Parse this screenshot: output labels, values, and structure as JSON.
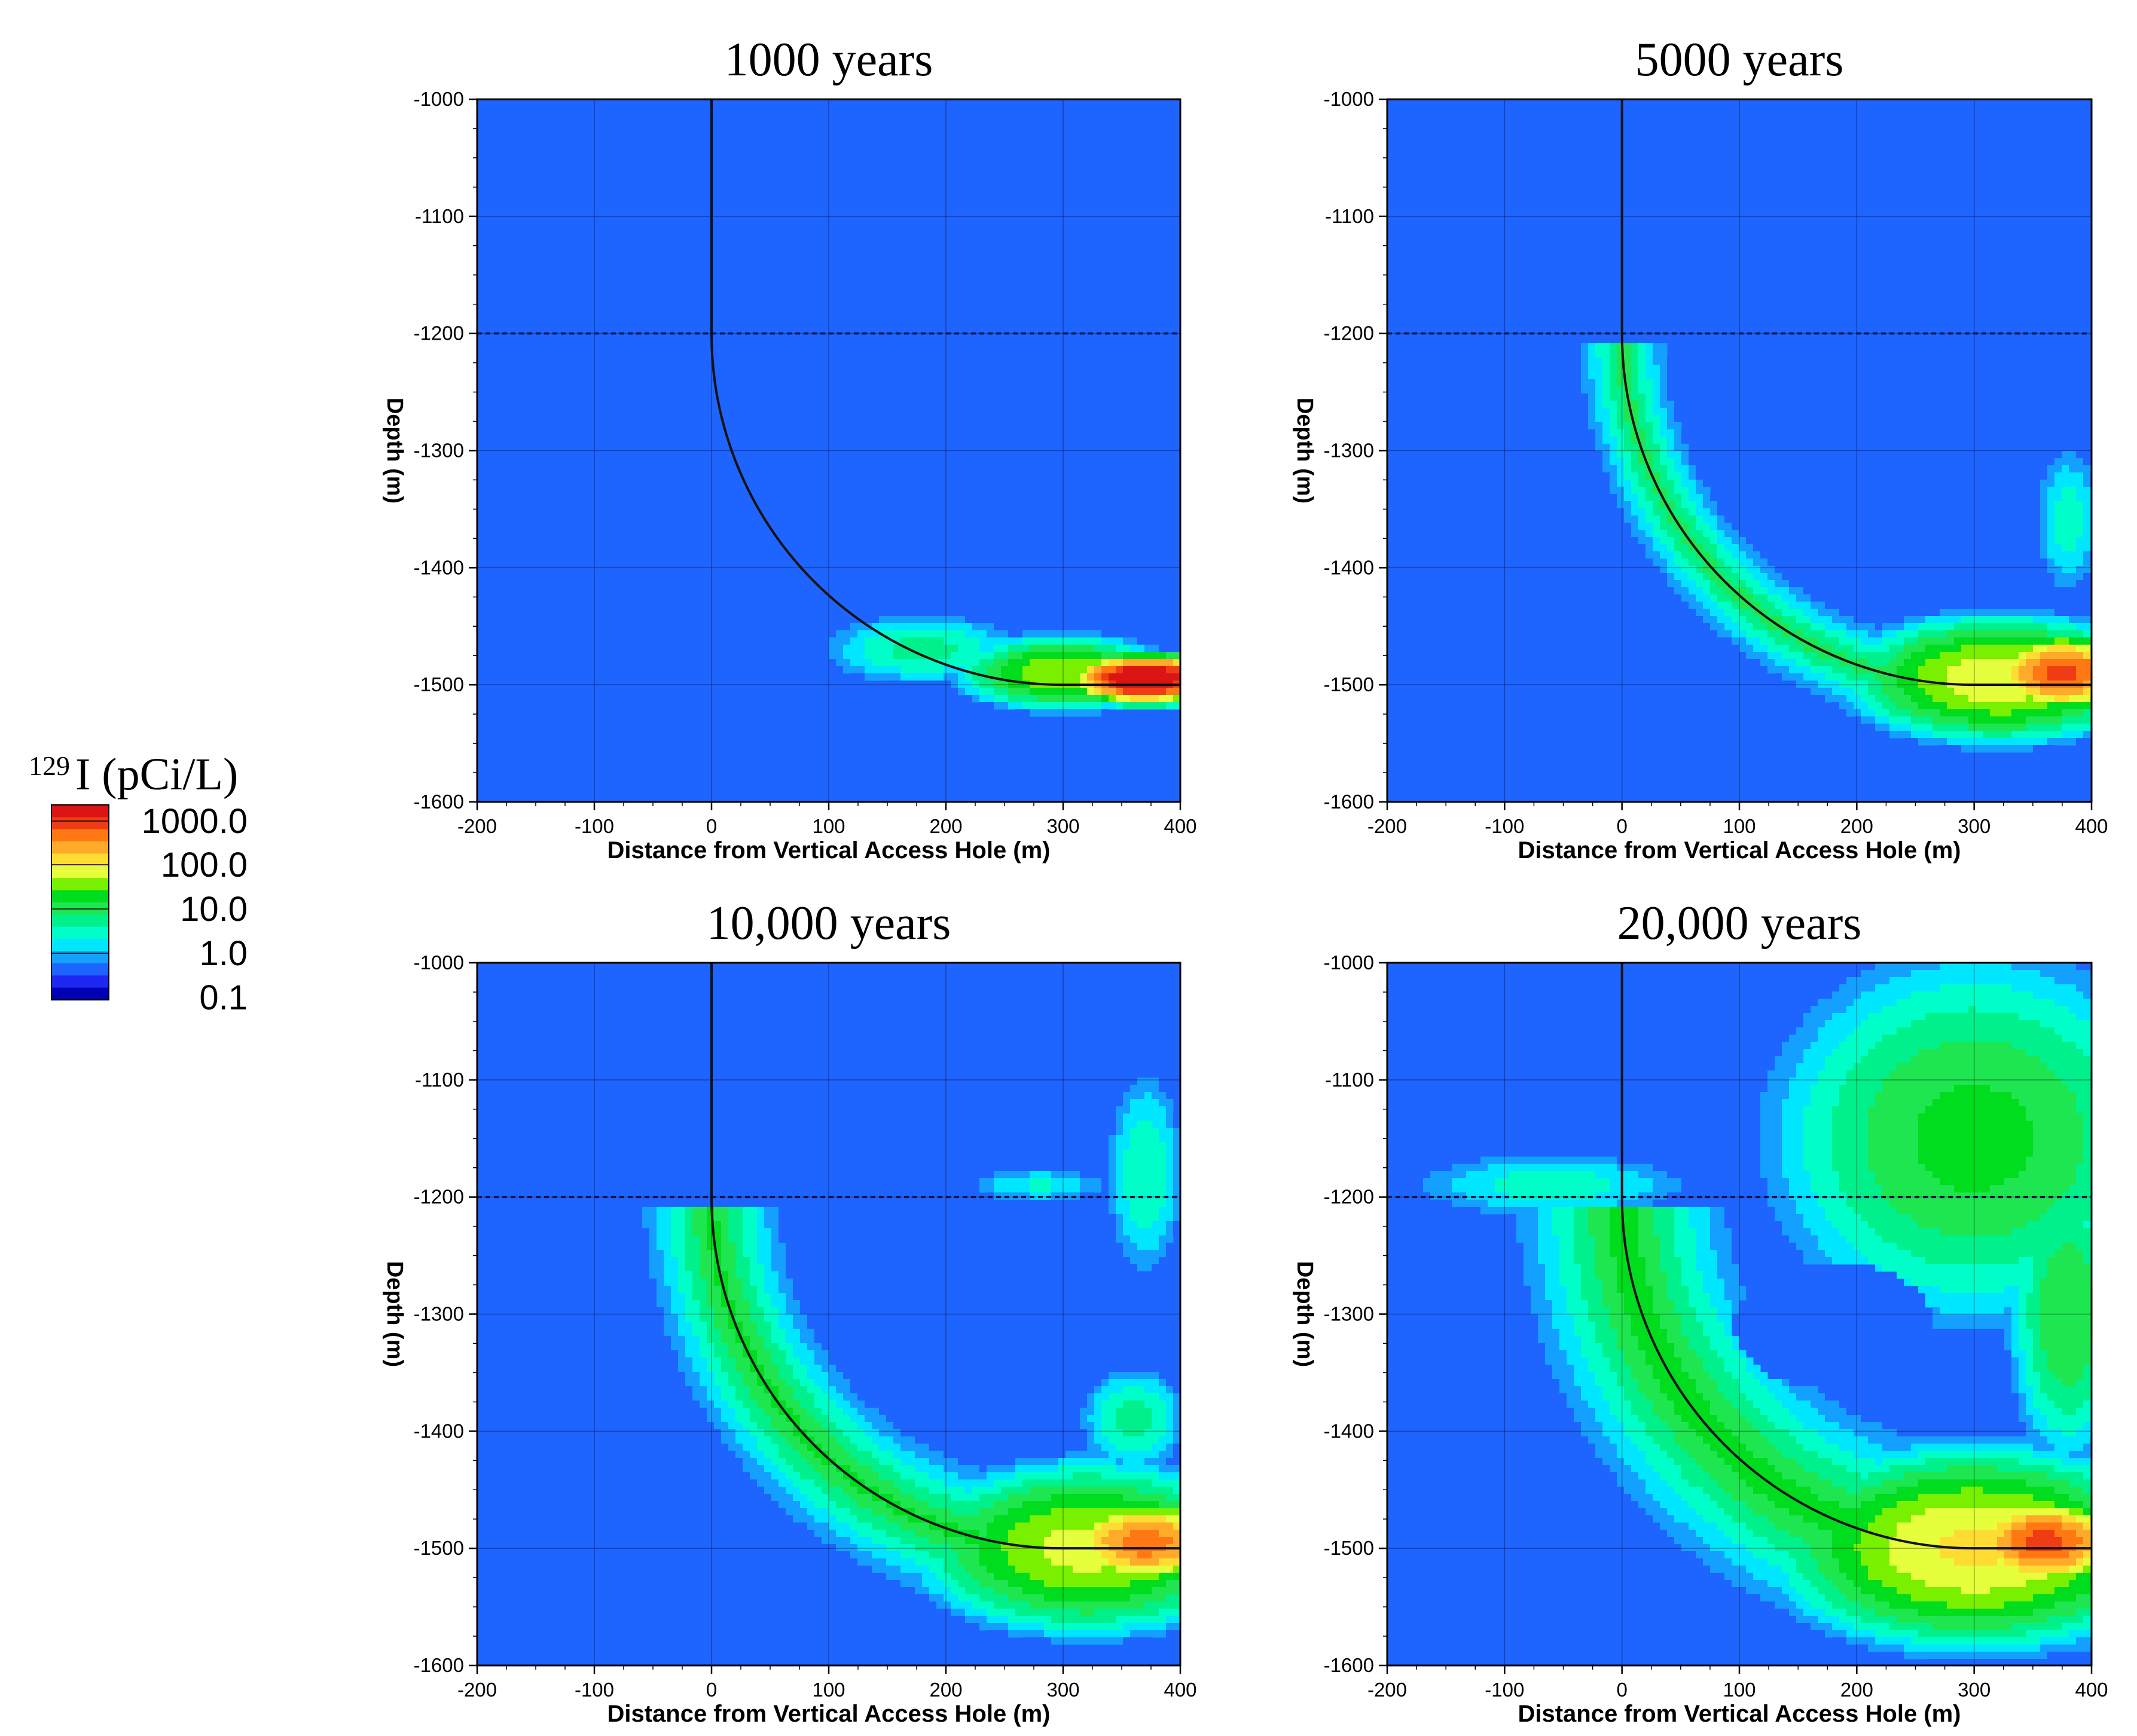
{
  "colorbar": {
    "isotope_mass": "129",
    "label": "I (pCi/L)",
    "tick_labels": [
      "1000.0",
      "100.0",
      "10.0",
      "1.0",
      "0.1"
    ],
    "colors": [
      "#0000b4",
      "#1e28f0",
      "#1e64ff",
      "#14a0ff",
      "#00e6ff",
      "#00ffc8",
      "#00f08c",
      "#1ee650",
      "#00dc1e",
      "#78f000",
      "#e6ff3c",
      "#ffdc32",
      "#ffaa28",
      "#ff7814",
      "#f03c14",
      "#dc1414"
    ]
  },
  "chart_data": [
    {
      "type": "heatmap",
      "title": "1000 years",
      "xlabel": "Distance from Vertical Access Hole (m)",
      "ylabel": "Depth (m)",
      "xlim": [
        -200,
        400
      ],
      "ylim": [
        -1600,
        -1000
      ],
      "xticks": [
        "-200",
        "-100",
        "0",
        "100",
        "200",
        "300",
        "400"
      ],
      "yticks": [
        "-1000",
        "-1100",
        "-1200",
        "-1300",
        "-1400",
        "-1500",
        "-1600"
      ],
      "dashed_line_depth": -1200,
      "borehole": {
        "vertical_x": 0,
        "top": -1000,
        "kick_off": -1200,
        "horizontal_depth": -1500,
        "curve_end_x": 300,
        "end_x": 400
      },
      "plumes": [
        {
          "center": [
            370,
            -1495
          ],
          "radius": [
            55,
            18
          ],
          "peak_log10": 3.2
        },
        {
          "center": [
            300,
            -1490
          ],
          "radius": [
            95,
            34
          ],
          "peak_log10": 1.5
        },
        {
          "center": [
            180,
            -1470
          ],
          "radius": [
            110,
            40
          ],
          "peak_log10": 0.6
        }
      ]
    },
    {
      "type": "heatmap",
      "title": "5000 years",
      "xlabel": "Distance from Vertical Access Hole (m)",
      "ylabel": "Depth (m)",
      "xlim": [
        -200,
        400
      ],
      "ylim": [
        -1600,
        -1000
      ],
      "xticks": [
        "-200",
        "-100",
        "0",
        "100",
        "200",
        "300",
        "400"
      ],
      "yticks": [
        "-1000",
        "-1100",
        "-1200",
        "-1300",
        "-1400",
        "-1500",
        "-1600"
      ],
      "dashed_line_depth": -1200,
      "borehole": {
        "vertical_x": 0,
        "top": -1000,
        "kick_off": -1200,
        "horizontal_depth": -1500,
        "curve_end_x": 300,
        "end_x": 400
      },
      "plumes": [
        {
          "center": [
            375,
            -1490
          ],
          "radius": [
            60,
            30
          ],
          "peak_log10": 2.6
        },
        {
          "center": [
            320,
            -1495
          ],
          "radius": [
            130,
            55
          ],
          "peak_log10": 1.7
        },
        {
          "center": [
            380,
            -1360
          ],
          "radius": [
            40,
            90
          ],
          "peak_log10": 0.4
        }
      ],
      "path_halo": {
        "peak_log10": 0.9,
        "width": 28
      }
    },
    {
      "type": "heatmap",
      "title": "10,000 years",
      "xlabel": "Distance from Vertical Access Hole (m)",
      "ylabel": "Depth (m)",
      "xlim": [
        -200,
        400
      ],
      "ylim": [
        -1600,
        -1000
      ],
      "xticks": [
        "-200",
        "-100",
        "0",
        "100",
        "200",
        "300",
        "400"
      ],
      "yticks": [
        "-1000",
        "-1100",
        "-1200",
        "-1300",
        "-1400",
        "-1500",
        "-1600"
      ],
      "dashed_line_depth": -1200,
      "borehole": {
        "vertical_x": 0,
        "top": -1000,
        "kick_off": -1200,
        "horizontal_depth": -1500,
        "curve_end_x": 300,
        "end_x": 400
      },
      "plumes": [
        {
          "center": [
            370,
            -1495
          ],
          "radius": [
            70,
            35
          ],
          "peak_log10": 2.4
        },
        {
          "center": [
            320,
            -1500
          ],
          "radius": [
            150,
            75
          ],
          "peak_log10": 1.6
        },
        {
          "center": [
            370,
            -1180
          ],
          "radius": [
            45,
            120
          ],
          "peak_log10": 0.5
        },
        {
          "center": [
            280,
            -1190
          ],
          "radius": [
            90,
            22
          ],
          "peak_log10": 0.3
        },
        {
          "center": [
            360,
            -1390
          ],
          "radius": [
            60,
            60
          ],
          "peak_log10": 0.6
        }
      ],
      "path_halo": {
        "peak_log10": 1.1,
        "width": 38
      }
    },
    {
      "type": "heatmap",
      "title": "20,000 years",
      "xlabel": "Distance from Vertical Access Hole (m)",
      "ylabel": "Depth (m)",
      "xlim": [
        -200,
        400
      ],
      "ylim": [
        -1600,
        -1000
      ],
      "xticks": [
        "-200",
        "-100",
        "0",
        "100",
        "200",
        "300",
        "400"
      ],
      "yticks": [
        "-1000",
        "-1100",
        "-1200",
        "-1300",
        "-1400",
        "-1500",
        "-1600"
      ],
      "dashed_line_depth": -1200,
      "borehole": {
        "vertical_x": 0,
        "top": -1000,
        "kick_off": -1200,
        "horizontal_depth": -1500,
        "curve_end_x": 300,
        "end_x": 400
      },
      "plumes": [
        {
          "center": [
            360,
            -1495
          ],
          "radius": [
            65,
            35
          ],
          "peak_log10": 2.6
        },
        {
          "center": [
            300,
            -1500
          ],
          "radius": [
            170,
            85
          ],
          "peak_log10": 1.8
        },
        {
          "center": [
            300,
            -1150
          ],
          "radius": [
            200,
            180
          ],
          "peak_log10": 1.1
        },
        {
          "center": [
            -60,
            -1190
          ],
          "radius": [
            170,
            40
          ],
          "peak_log10": 0.4
        },
        {
          "center": [
            380,
            -1300
          ],
          "radius": [
            60,
            150
          ],
          "peak_log10": 1.0
        }
      ],
      "path_halo": {
        "peak_log10": 1.2,
        "width": 55
      },
      "hole": {
        "center": [
          180,
          -1310
        ],
        "radius": [
          85,
          55
        ]
      }
    }
  ]
}
